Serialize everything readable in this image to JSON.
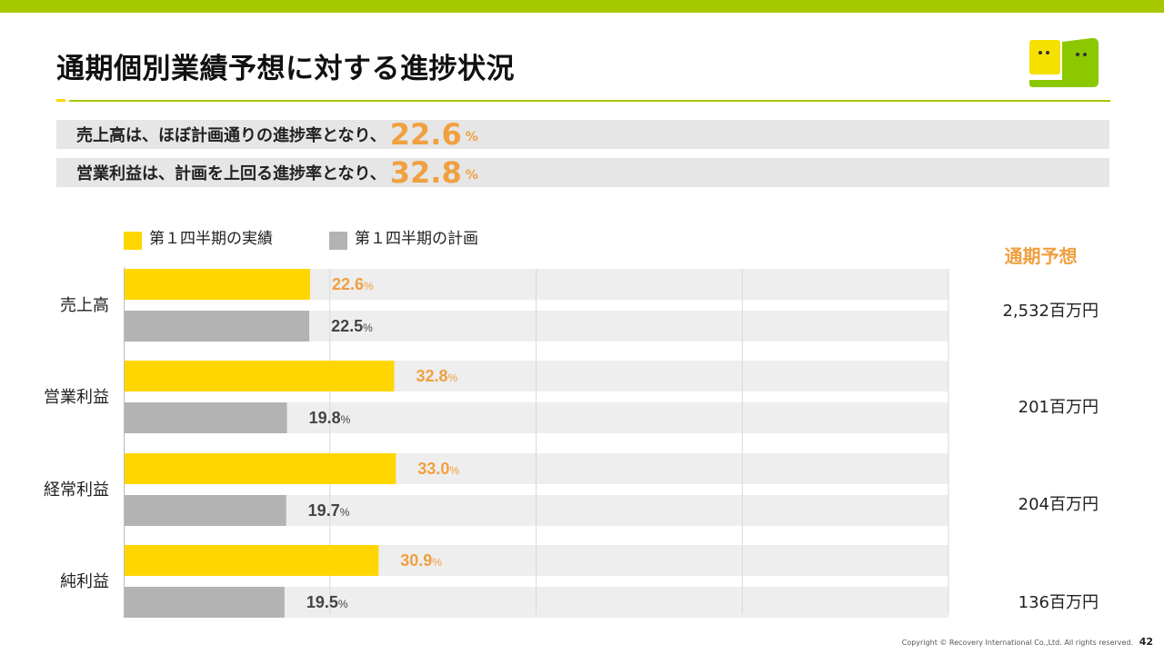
{
  "colors": {
    "brand_green": "#a5c800",
    "actual": "#ffd600",
    "plan": "#b3b3b3",
    "accent_orange": "#f0a040",
    "track": "#eeeeee",
    "plan_label": "#444444",
    "logo_yellow": "#f5e000",
    "logo_green": "#8cc800"
  },
  "page": {
    "title": "通期個別業績予想に対する進捗状況",
    "page_number": "42",
    "copyright": "Copyright © Recovery International Co.,Ltd. All rights reserved."
  },
  "summary": [
    {
      "text": "売上高は、ほぼ計画通りの進捗率となり、",
      "value": "22.6",
      "unit": "%"
    },
    {
      "text": "営業利益は、計画を上回る進捗率となり、",
      "value": "32.8",
      "unit": "%"
    }
  ],
  "forecast": {
    "header": "通期予想",
    "values": [
      "2,532百万円",
      "201百万円",
      "204百万円",
      "136百万円"
    ]
  },
  "chart_data": {
    "type": "bar",
    "orientation": "horizontal",
    "categories": [
      "売上高",
      "営業利益",
      "経常利益",
      "純利益"
    ],
    "series": [
      {
        "name": "第１四半期の実績",
        "values": [
          22.6,
          32.8,
          33.0,
          30.9
        ],
        "color": "#ffd600"
      },
      {
        "name": "第１四半期の計画",
        "values": [
          22.5,
          19.8,
          19.7,
          19.5
        ],
        "color": "#b3b3b3"
      }
    ],
    "value_unit": "%",
    "xlim": [
      0,
      100
    ],
    "grid": true,
    "legend_position": "top-left"
  }
}
